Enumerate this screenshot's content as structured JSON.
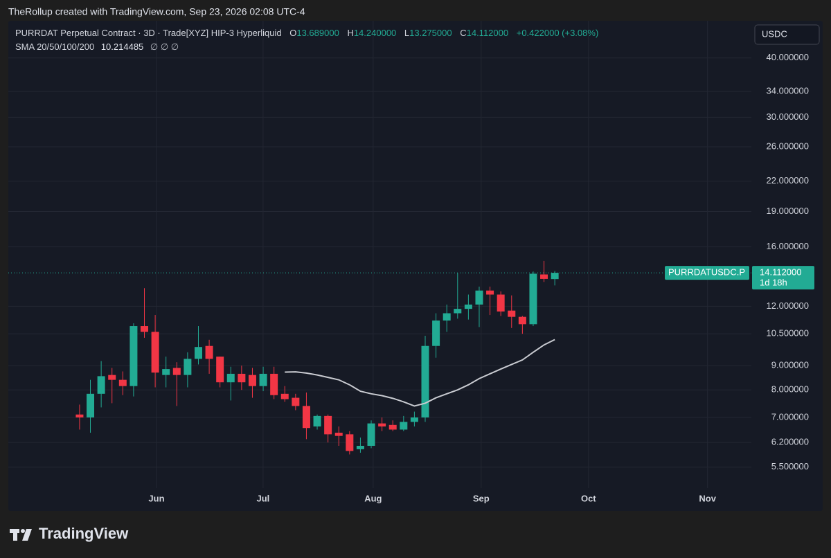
{
  "chart_data": {
    "type": "candlestick",
    "attribution": "TheRollup created with TradingView.com, Sep 23, 2026 02:08 UTC-4",
    "title": "PURRDAT Perpetual Contract · 3D · Trade[XYZ] HIP-3 Hyperliquid",
    "ohlc_header": [
      {
        "label": "O",
        "value": "13.689000"
      },
      {
        "label": "H",
        "value": "14.240000"
      },
      {
        "label": "L",
        "value": "13.275000"
      },
      {
        "label": "C",
        "value": "14.112000"
      }
    ],
    "change": "+0.422000 (+3.08%)",
    "indicator": {
      "name": "SMA 20/50/100/200",
      "value": "10.214485",
      "extras": "∅  ∅  ∅"
    },
    "currency": "USDC",
    "symbol_label": "PURRDATUSDC.P",
    "last_price_label": "14.112000",
    "countdown": "1d 18h",
    "brand": "TradingView",
    "log_scale": true,
    "grid": true,
    "up_color": "#22ab94",
    "down_color": "#f23645",
    "ylim": [
      4.97,
      47.9
    ],
    "yticks": [
      {
        "value": 40,
        "label": "40.000000"
      },
      {
        "value": 34,
        "label": "34.000000"
      },
      {
        "value": 30,
        "label": "30.000000"
      },
      {
        "value": 26,
        "label": "26.000000"
      },
      {
        "value": 22,
        "label": "22.000000"
      },
      {
        "value": 19,
        "label": "19.000000"
      },
      {
        "value": 16,
        "label": "16.000000"
      },
      {
        "value": 12,
        "label": "12.000000"
      },
      {
        "value": 10.5,
        "label": "10.500000"
      },
      {
        "value": 9,
        "label": "9.000000"
      },
      {
        "value": 8,
        "label": "8.000000"
      },
      {
        "value": 7,
        "label": "7.000000"
      },
      {
        "value": 6.2,
        "label": "6.200000"
      },
      {
        "value": 5.5,
        "label": "5.500000"
      }
    ],
    "xlim": [
      -6.6,
      62.2
    ],
    "xticks": [
      {
        "value": 7.12,
        "label": "Jun"
      },
      {
        "value": 16.99,
        "label": "Jul"
      },
      {
        "value": 27.18,
        "label": "Aug"
      },
      {
        "value": 37.18,
        "label": "Sep"
      },
      {
        "value": 47.12,
        "label": "Oct"
      },
      {
        "value": 58.14,
        "label": "Nov"
      }
    ],
    "open": [
      7.1,
      7.0,
      7.85,
      8.6,
      8.4,
      8.15,
      10.9,
      10.6,
      8.6,
      8.9,
      8.6,
      9.3,
      9.9,
      9.4,
      8.3,
      8.65,
      8.6,
      8.15,
      8.65,
      7.85,
      7.7,
      7.4,
      6.7,
      7.05,
      6.5,
      6.45,
      6.0,
      6.1,
      6.8,
      6.75,
      6.6,
      6.85,
      7.0,
      9.9,
      11.2,
      11.6,
      11.85,
      12.1,
      12.95,
      12.7,
      11.75,
      11.4,
      11.0,
      14.0,
      13.689
    ],
    "high": [
      7.45,
      8.4,
      9.2,
      8.9,
      8.75,
      11.05,
      13.1,
      11.5,
      9.4,
      9.15,
      9.6,
      10.9,
      10.2,
      9.4,
      8.95,
      9.0,
      8.9,
      8.95,
      8.95,
      8.15,
      7.85,
      7.9,
      7.1,
      7.1,
      6.7,
      6.55,
      6.35,
      6.9,
      7.0,
      6.9,
      7.05,
      7.2,
      10.4,
      11.6,
      12.1,
      14.1,
      12.7,
      13.2,
      13.2,
      12.9,
      12.65,
      11.45,
      14.2,
      14.95,
      14.24
    ],
    "low": [
      6.6,
      6.5,
      7.35,
      7.5,
      7.8,
      7.75,
      10.3,
      8.1,
      8.1,
      7.4,
      8.1,
      9.05,
      8.65,
      8.1,
      7.6,
      8.0,
      7.7,
      7.95,
      7.65,
      7.55,
      7.25,
      6.3,
      6.6,
      6.2,
      6.1,
      5.85,
      5.9,
      6.03,
      6.55,
      6.55,
      6.55,
      6.7,
      6.85,
      9.35,
      10.6,
      11.3,
      11.25,
      10.85,
      11.5,
      11.45,
      10.8,
      10.5,
      10.9,
      13.5,
      13.275
    ],
    "close": [
      7.0,
      7.85,
      8.55,
      8.4,
      8.15,
      10.9,
      10.6,
      8.7,
      8.85,
      8.6,
      9.3,
      9.85,
      9.3,
      8.3,
      8.65,
      8.3,
      8.15,
      8.65,
      7.8,
      7.65,
      7.4,
      6.65,
      7.05,
      6.45,
      6.4,
      5.95,
      6.1,
      6.8,
      6.7,
      6.6,
      6.85,
      7.0,
      9.9,
      11.2,
      11.6,
      11.85,
      12.1,
      12.95,
      12.7,
      11.7,
      11.4,
      11.0,
      14.05,
      13.7,
      14.112
    ],
    "overlay": {
      "name": "SMA 20/50/100/200",
      "color": "#c9cbd1",
      "values": [
        null,
        null,
        null,
        null,
        null,
        null,
        null,
        null,
        null,
        null,
        null,
        null,
        null,
        null,
        null,
        null,
        null,
        null,
        null,
        8.72,
        8.73,
        8.68,
        8.6,
        8.5,
        8.4,
        8.2,
        7.95,
        7.85,
        7.78,
        7.68,
        7.55,
        7.4,
        7.5,
        7.7,
        7.85,
        8.0,
        8.2,
        8.45,
        8.65,
        8.85,
        9.05,
        9.25,
        9.6,
        9.95,
        10.21
      ]
    }
  }
}
